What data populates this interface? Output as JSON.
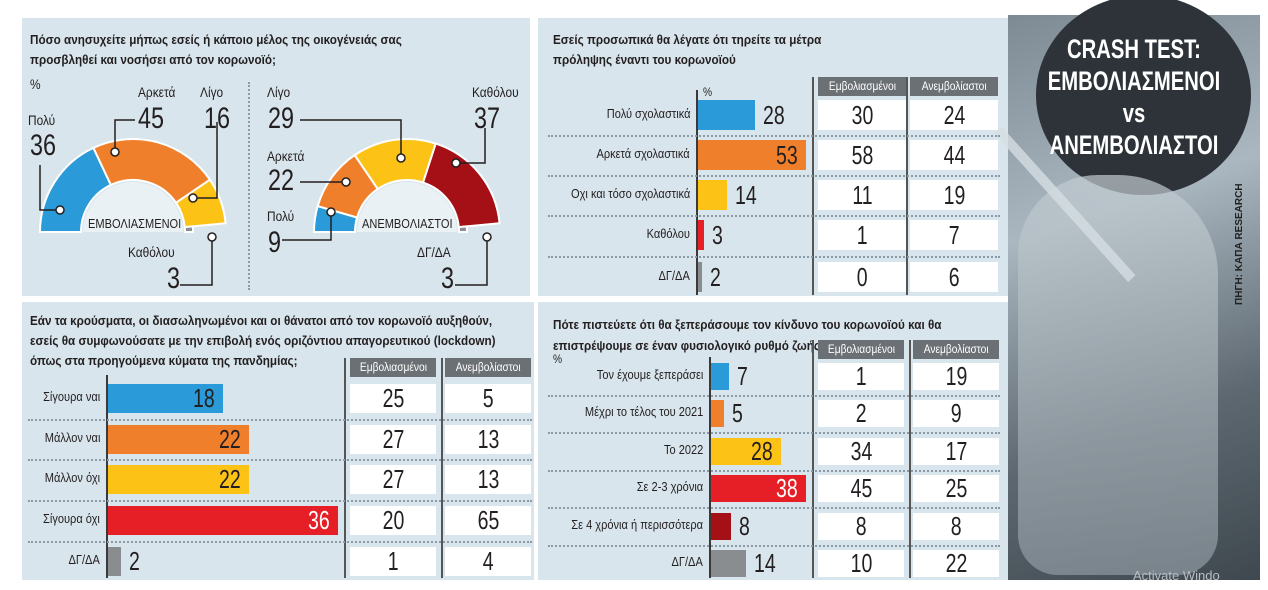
{
  "colors": {
    "blue": "#2a9bd8",
    "orange": "#f07f2b",
    "yellow": "#fcc216",
    "red": "#e61e25",
    "darkred": "#a50f16",
    "grey": "#8a8d90",
    "panel": "#d8e5ec"
  },
  "cover": {
    "line1": "CRASH TEST:",
    "line2": "ΕΜΒΟΛΙΑΣΜΕΝΟΙ",
    "line3": "vs",
    "line4": "ΑΝΕΜΒΟΛΙΑΣΤΟΙ",
    "source": "ΠΗΓΗ: ΚΑΠΑ RESEARCH"
  },
  "watermark": "Activate Windo",
  "chart_data": [
    {
      "type": "pie",
      "title": "Πόσο ανησυχείτε μήπως εσείς ή κάποιο μέλος της οικογένειάς σας προσβληθεί και νοσήσει από τον κορωνοϊό;",
      "unit": "%",
      "gauges": [
        {
          "name": "ΕΜΒΟΛΙΑΣΜΕΝΟΙ",
          "slices": [
            {
              "label": "Πολύ",
              "value": 36,
              "color": "#2a9bd8"
            },
            {
              "label": "Αρκετά",
              "value": 45,
              "color": "#f07f2b"
            },
            {
              "label": "Λίγο",
              "value": 16,
              "color": "#fcc216"
            },
            {
              "label": "Καθόλου",
              "value": 3,
              "color": "#8a8d90"
            }
          ]
        },
        {
          "name": "ΑΝΕΜΒΟΛΙΑΣΤΟΙ",
          "slices": [
            {
              "label": "Πολύ",
              "value": 9,
              "color": "#2a9bd8"
            },
            {
              "label": "Αρκετά",
              "value": 22,
              "color": "#f07f2b"
            },
            {
              "label": "Λίγο",
              "value": 29,
              "color": "#fcc216"
            },
            {
              "label": "Καθόλου",
              "value": 37,
              "color": "#a50f16"
            },
            {
              "label": "ΔΓ/ΔΑ",
              "value": 3,
              "color": "#8a8d90"
            }
          ]
        }
      ]
    },
    {
      "type": "bar",
      "title": "Εσείς προσωπικά θα λέγατε ότι τηρείτε τα μέτρα πρόληψης έναντι του κορωνοϊού",
      "unit": "%",
      "columns": [
        "Εμβολιασμένοι",
        "Ανεμβολίαστοι"
      ],
      "categories": [
        "Πολύ σχολαστικά",
        "Αρκετά σχολαστικά",
        "Οχι και τόσο σχολαστικά",
        "Καθόλου",
        "ΔΓ/ΔΑ"
      ],
      "values": [
        28,
        53,
        14,
        3,
        2
      ],
      "colors": [
        "#2a9bd8",
        "#f07f2b",
        "#fcc216",
        "#e61e25",
        "#8a8d90"
      ],
      "vaccinated": [
        30,
        58,
        11,
        1,
        0
      ],
      "unvaccinated": [
        24,
        44,
        19,
        7,
        6
      ]
    },
    {
      "type": "bar",
      "title": "Εάν τα κρούσματα, οι διασωληνωμένοι και οι θάνατοι από τον κορωνοϊό αυξηθούν, εσείς θα συμφωνούσατε με την επιβολή ενός οριζόντιου απαγορευτικού (lockdown) όπως στα προηγούμενα κύματα της πανδημίας;",
      "unit": "%",
      "columns": [
        "Εμβολιασμένοι",
        "Ανεμβολίαστοι"
      ],
      "categories": [
        "Σίγουρα ναι",
        "Μάλλον ναι",
        "Μάλλον όχι",
        "Σίγουρα όχι",
        "ΔΓ/ΔΑ"
      ],
      "values": [
        18,
        22,
        22,
        36,
        2
      ],
      "colors": [
        "#2a9bd8",
        "#f07f2b",
        "#fcc216",
        "#e61e25",
        "#8a8d90"
      ],
      "vaccinated": [
        25,
        27,
        27,
        20,
        1
      ],
      "unvaccinated": [
        5,
        13,
        13,
        65,
        4
      ]
    },
    {
      "type": "bar",
      "title": "Πότε πιστεύετε ότι θα ξεπεράσουμε τον κίνδυνο του κορωνοϊού και θα επιστρέψουμε σε έναν φυσιολογικό ρυθμό ζωής;",
      "unit": "%",
      "columns": [
        "Εμβολιασμένοι",
        "Ανεμβολίαστοι"
      ],
      "categories": [
        "Τον έχουμε ξεπεράσει",
        "Μέχρι το τέλος του 2021",
        "Το 2022",
        "Σε 2-3 χρόνια",
        "Σε 4 χρόνια ή περισσότερα",
        "ΔΓ/ΔΑ"
      ],
      "values": [
        7,
        5,
        28,
        38,
        8,
        14
      ],
      "colors": [
        "#2a9bd8",
        "#f07f2b",
        "#fcc216",
        "#e61e25",
        "#a50f16",
        "#8a8d90"
      ],
      "vaccinated": [
        1,
        2,
        34,
        45,
        8,
        10
      ],
      "unvaccinated": [
        19,
        9,
        17,
        25,
        8,
        22
      ]
    }
  ]
}
